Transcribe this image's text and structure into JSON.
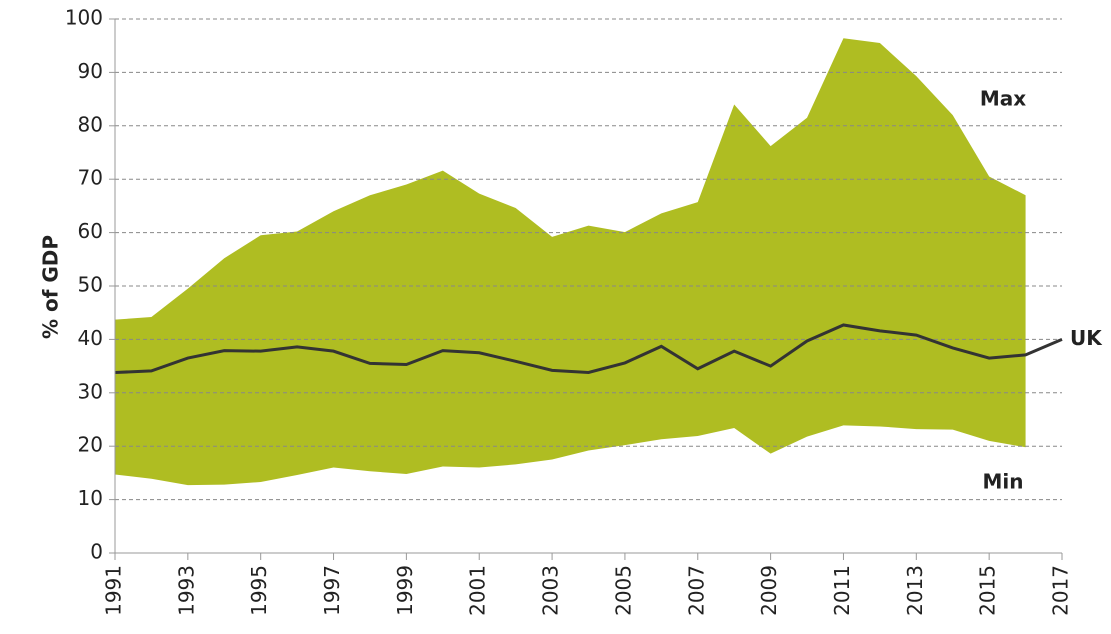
{
  "chart_data": {
    "type": "band-line",
    "y_label": "% of GDP",
    "x": [
      1991,
      1992,
      1993,
      1994,
      1995,
      1996,
      1997,
      1998,
      1999,
      2000,
      2001,
      2002,
      2003,
      2004,
      2005,
      2006,
      2007,
      2008,
      2009,
      2010,
      2011,
      2012,
      2013,
      2014,
      2015,
      2016,
      2017
    ],
    "series": [
      {
        "name": "Max",
        "color": "#afbd22",
        "values": [
          43.7,
          44.2,
          49.5,
          55.2,
          59.5,
          60.2,
          64,
          67,
          69,
          71.6,
          67.3,
          64.6,
          59.2,
          61.3,
          60.1,
          63.6,
          65.7,
          84,
          76.2,
          81.5,
          96.4,
          95.5,
          89.3,
          82,
          70.5,
          67,
          null
        ]
      },
      {
        "name": "Min",
        "color": "#afbd22",
        "values": [
          14.7,
          13.9,
          12.7,
          12.8,
          13.3,
          14.6,
          16,
          15.3,
          14.8,
          16.2,
          16,
          16.6,
          17.5,
          19.2,
          20.2,
          21.3,
          21.9,
          23.4,
          18.6,
          21.8,
          23.9,
          23.7,
          23.2,
          23.1,
          21,
          19.8,
          null
        ]
      },
      {
        "name": "UK",
        "color": "#333333",
        "values": [
          33.8,
          34.1,
          36.5,
          37.9,
          37.8,
          38.6,
          37.8,
          35.5,
          35.3,
          37.9,
          37.5,
          35.9,
          34.2,
          33.8,
          35.6,
          38.7,
          34.5,
          37.8,
          35,
          39.7,
          42.7,
          41.6,
          40.8,
          38.4,
          36.5,
          37.1,
          40
        ]
      }
    ],
    "xlim": [
      1991,
      2017
    ],
    "xticks": [
      1991,
      1993,
      1995,
      1997,
      1999,
      2001,
      2003,
      2005,
      2007,
      2009,
      2011,
      2013,
      2015,
      2017
    ],
    "ylim": [
      0,
      100
    ],
    "yticks": [
      0,
      10,
      20,
      30,
      40,
      50,
      60,
      70,
      80,
      90,
      100
    ],
    "grid": true
  }
}
